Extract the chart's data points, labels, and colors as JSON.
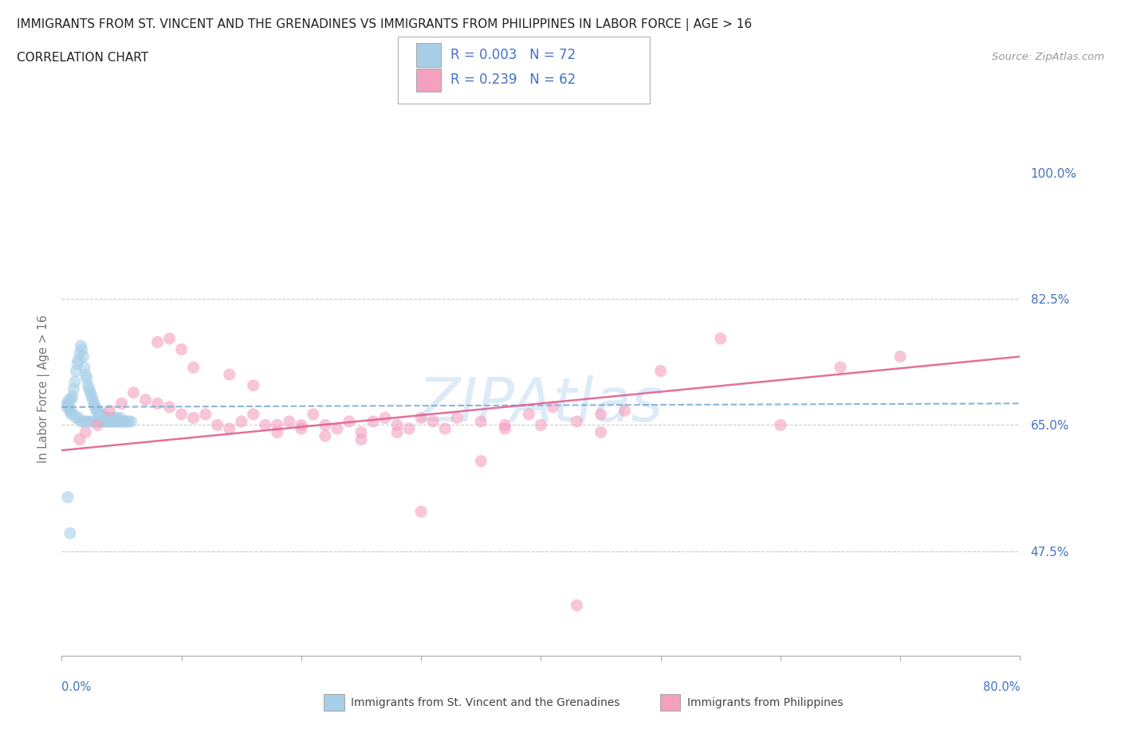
{
  "title": "IMMIGRANTS FROM ST. VINCENT AND THE GRENADINES VS IMMIGRANTS FROM PHILIPPINES IN LABOR FORCE | AGE > 16",
  "subtitle": "CORRELATION CHART",
  "source": "Source: ZipAtlas.com",
  "ylabel_label": "In Labor Force | Age > 16",
  "legend_blue_r": "R = 0.003",
  "legend_blue_n": "N = 72",
  "legend_pink_r": "R = 0.239",
  "legend_pink_n": "N = 62",
  "blue_color": "#a8cfe8",
  "pink_color": "#f4a0be",
  "trendline_blue_color": "#7bafd4",
  "trendline_pink_color": "#e06090",
  "axis_label_color": "#4472c4",
  "watermark_color": "#ddeaf7",
  "background_color": "#ffffff",
  "blue_scatter_x": [
    0.5,
    0.6,
    0.7,
    0.8,
    0.9,
    1.0,
    1.1,
    1.2,
    1.3,
    1.4,
    1.5,
    1.6,
    1.7,
    1.8,
    1.9,
    2.0,
    2.1,
    2.2,
    2.3,
    2.4,
    2.5,
    2.6,
    2.7,
    2.8,
    2.9,
    3.0,
    3.1,
    3.2,
    3.3,
    3.4,
    3.5,
    3.6,
    3.7,
    3.8,
    3.9,
    4.0,
    4.1,
    4.2,
    4.3,
    4.4,
    4.5,
    4.6,
    4.7,
    4.8,
    4.9,
    5.0,
    5.2,
    5.4,
    5.6,
    5.8,
    0.4,
    0.5,
    0.6,
    0.7,
    0.8,
    1.0,
    1.2,
    1.4,
    1.6,
    1.8,
    2.0,
    2.2,
    2.5,
    2.8,
    3.0,
    3.2,
    3.5,
    3.8,
    4.0,
    4.5,
    0.5,
    0.7
  ],
  "blue_scatter_y": [
    68.0,
    67.5,
    67.0,
    68.5,
    69.0,
    70.0,
    71.0,
    72.5,
    73.5,
    74.0,
    75.0,
    76.0,
    75.5,
    74.5,
    73.0,
    72.0,
    71.5,
    70.5,
    70.0,
    69.5,
    69.0,
    68.5,
    68.0,
    67.5,
    67.0,
    67.0,
    66.5,
    66.5,
    66.0,
    66.0,
    66.5,
    65.5,
    66.0,
    66.0,
    65.5,
    65.5,
    66.0,
    65.5,
    65.5,
    66.0,
    65.5,
    66.0,
    65.5,
    65.5,
    66.0,
    65.5,
    65.5,
    65.5,
    65.5,
    65.5,
    67.5,
    68.0,
    68.5,
    67.0,
    66.5,
    66.5,
    66.0,
    66.0,
    65.5,
    65.5,
    65.5,
    65.5,
    65.5,
    65.5,
    65.5,
    65.5,
    65.5,
    65.5,
    65.5,
    65.5,
    55.0,
    50.0
  ],
  "pink_scatter_x": [
    1.5,
    2.0,
    3.0,
    4.0,
    5.0,
    6.0,
    7.0,
    8.0,
    9.0,
    10.0,
    11.0,
    12.0,
    13.0,
    14.0,
    15.0,
    16.0,
    17.0,
    18.0,
    19.0,
    20.0,
    21.0,
    22.0,
    23.0,
    24.0,
    25.0,
    26.0,
    27.0,
    28.0,
    29.0,
    30.0,
    31.0,
    32.0,
    33.0,
    35.0,
    37.0,
    39.0,
    41.0,
    43.0,
    45.0,
    47.0,
    50.0,
    55.0,
    60.0,
    65.0,
    70.0,
    8.0,
    9.0,
    10.0,
    11.0,
    14.0,
    16.0,
    18.0,
    20.0,
    22.0,
    25.0,
    28.0,
    30.0,
    35.0,
    37.0,
    40.0,
    43.0,
    45.0
  ],
  "pink_scatter_y": [
    63.0,
    64.0,
    65.0,
    67.0,
    68.0,
    69.5,
    68.5,
    68.0,
    67.5,
    66.5,
    66.0,
    66.5,
    65.0,
    64.5,
    65.5,
    66.5,
    65.0,
    64.0,
    65.5,
    65.0,
    66.5,
    65.0,
    64.5,
    65.5,
    64.0,
    65.5,
    66.0,
    65.0,
    64.5,
    66.0,
    65.5,
    64.5,
    66.0,
    65.5,
    65.0,
    66.5,
    67.5,
    65.5,
    66.5,
    67.0,
    72.5,
    77.0,
    65.0,
    73.0,
    74.5,
    76.5,
    77.0,
    75.5,
    73.0,
    72.0,
    70.5,
    65.0,
    64.5,
    63.5,
    63.0,
    64.0,
    53.0,
    60.0,
    64.5,
    65.0,
    40.0,
    64.0
  ],
  "xmin": 0.0,
  "xmax": 80.0,
  "ymin": 33.0,
  "ymax": 107.0,
  "yticks": [
    47.5,
    65.0,
    82.5,
    100.0
  ],
  "hline_positions": [
    82.5,
    65.0,
    47.5
  ],
  "xtick_positions": [
    0,
    10,
    20,
    30,
    40,
    50,
    60,
    70,
    80
  ],
  "legend_bottom_blue": "Immigrants from St. Vincent and the Grenadines",
  "legend_bottom_pink": "Immigrants from Philippines",
  "pink_trendline_start_y": 61.5,
  "pink_trendline_end_y": 74.5,
  "blue_trendline_start_y": 67.5,
  "blue_trendline_end_y": 68.0
}
